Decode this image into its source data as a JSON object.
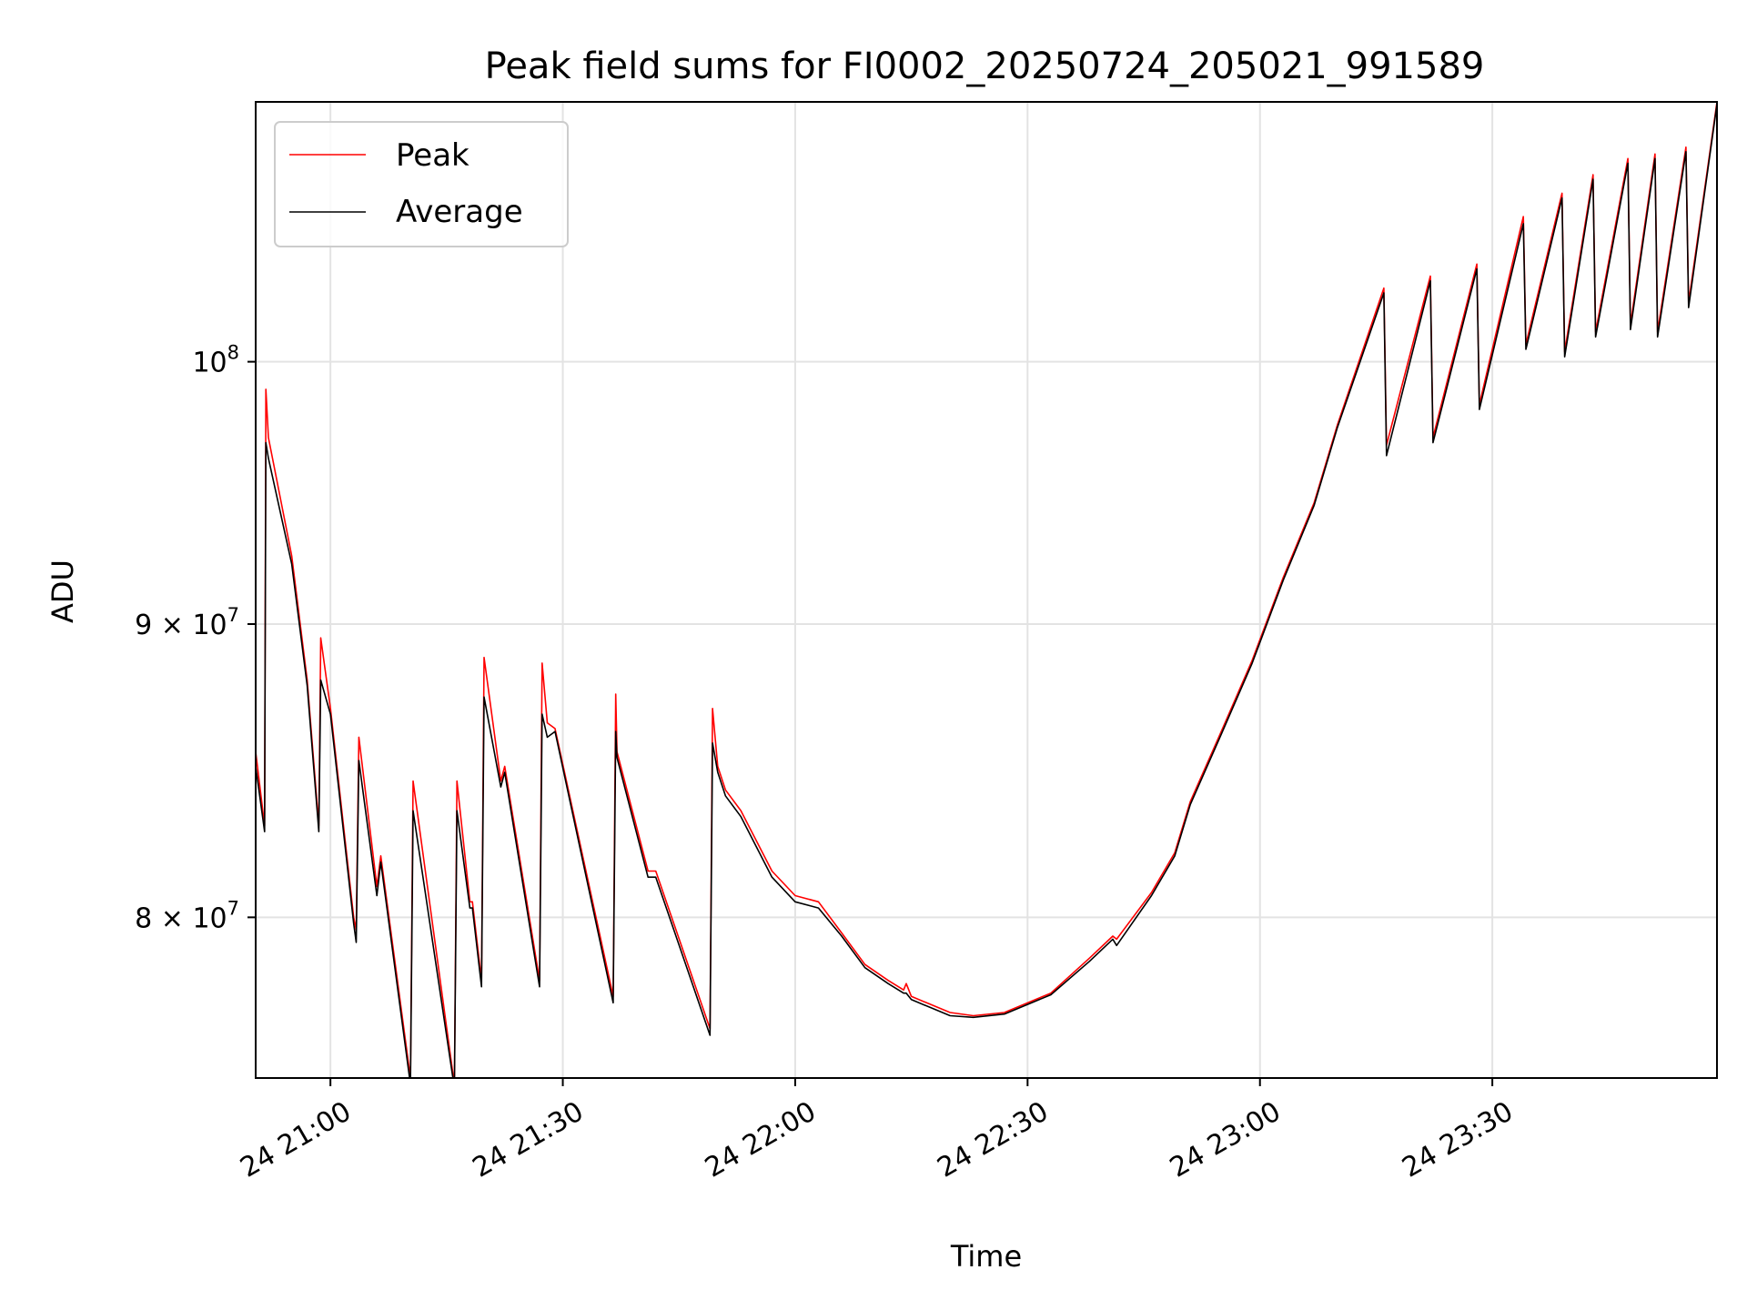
{
  "chart_data": {
    "type": "line",
    "title": "Peak field sums for FI0002_20250724_205021_991589",
    "xlabel": "Time",
    "ylabel": "ADU",
    "x_unit": "time of day (24 Jul 2025)",
    "xlim": [
      "20:50:21",
      "23:59:00"
    ],
    "ylim": [
      75000000,
      111000000
    ],
    "yscale": "log",
    "grid": true,
    "legend_position": "upper-left",
    "x_ticks": [
      {
        "value": "21:00",
        "label": "24 21:00"
      },
      {
        "value": "21:30",
        "label": "24 21:30"
      },
      {
        "value": "22:00",
        "label": "24 22:00"
      },
      {
        "value": "22:30",
        "label": "24 22:30"
      },
      {
        "value": "23:00",
        "label": "24 23:00"
      },
      {
        "value": "23:30",
        "label": "24 23:30"
      }
    ],
    "y_ticks": [
      {
        "value": 80000000,
        "base": "8",
        "exp": "7"
      },
      {
        "value": 90000000,
        "base": "9",
        "exp": "7"
      },
      {
        "value": 100000000,
        "base": "",
        "exp": "8"
      }
    ],
    "series": [
      {
        "name": "Peak",
        "color": "#ff0000",
        "points": [
          [
            "20:50:21",
            85500000
          ],
          [
            "20:51:30",
            83000000
          ],
          [
            "20:51:40",
            98900000
          ],
          [
            "20:52:00",
            97000000
          ],
          [
            "20:55:00",
            92500000
          ],
          [
            "20:57:00",
            88000000
          ],
          [
            "20:58:30",
            83000000
          ],
          [
            "20:58:45",
            89500000
          ],
          [
            "21:00:00",
            87000000
          ],
          [
            "21:03:00",
            80000000
          ],
          [
            "21:03:20",
            79600000
          ],
          [
            "21:03:40",
            86000000
          ],
          [
            "21:06:00",
            81000000
          ],
          [
            "21:06:30",
            82000000
          ],
          [
            "21:10:20",
            75000000
          ],
          [
            "21:10:40",
            84500000
          ],
          [
            "21:16:00",
            74800000
          ],
          [
            "21:16:20",
            84500000
          ],
          [
            "21:18:00",
            80500000
          ],
          [
            "21:18:20",
            80500000
          ],
          [
            "21:19:30",
            78000000
          ],
          [
            "21:19:50",
            88800000
          ],
          [
            "21:22:00",
            84500000
          ],
          [
            "21:22:30",
            85000000
          ],
          [
            "21:27:00",
            78000000
          ],
          [
            "21:27:20",
            88600000
          ],
          [
            "21:28:00",
            86500000
          ],
          [
            "21:29:00",
            86300000
          ],
          [
            "21:36:30",
            77500000
          ],
          [
            "21:36:50",
            87500000
          ],
          [
            "21:37:00",
            85500000
          ],
          [
            "21:41:00",
            81500000
          ],
          [
            "21:42:00",
            81500000
          ],
          [
            "21:49:00",
            76500000
          ],
          [
            "21:49:20",
            87000000
          ],
          [
            "21:50:00",
            85000000
          ],
          [
            "21:51:00",
            84200000
          ],
          [
            "21:53:00",
            83500000
          ],
          [
            "21:57:00",
            81500000
          ],
          [
            "22:00:00",
            80700000
          ],
          [
            "22:03:00",
            80500000
          ],
          [
            "22:06:00",
            79500000
          ],
          [
            "22:09:00",
            78500000
          ],
          [
            "22:12:00",
            78000000
          ],
          [
            "22:14:00",
            77700000
          ],
          [
            "22:14:20",
            77900000
          ],
          [
            "22:15:00",
            77500000
          ],
          [
            "22:20:00",
            77000000
          ],
          [
            "22:23:00",
            76900000
          ],
          [
            "22:27:00",
            77000000
          ],
          [
            "22:33:00",
            77600000
          ],
          [
            "22:38:00",
            78700000
          ],
          [
            "22:41:00",
            79400000
          ],
          [
            "22:41:30",
            79300000
          ],
          [
            "22:46:00",
            80800000
          ],
          [
            "22:49:00",
            82100000
          ],
          [
            "22:51:00",
            83800000
          ],
          [
            "22:55:00",
            86200000
          ],
          [
            "22:59:00",
            88700000
          ],
          [
            "23:03:00",
            91700000
          ],
          [
            "23:07:00",
            94500000
          ],
          [
            "23:10:00",
            97500000
          ],
          [
            "23:16:00",
            103000000
          ],
          [
            "23:16:20",
            96700000
          ],
          [
            "23:22:00",
            103500000
          ],
          [
            "23:22:20",
            97000000
          ],
          [
            "23:28:00",
            104000000
          ],
          [
            "23:28:20",
            98300000
          ],
          [
            "23:34:00",
            106000000
          ],
          [
            "23:34:20",
            100700000
          ],
          [
            "23:39:00",
            107000000
          ],
          [
            "23:39:20",
            100400000
          ],
          [
            "23:43:00",
            107800000
          ],
          [
            "23:43:20",
            101200000
          ],
          [
            "23:47:30",
            108500000
          ],
          [
            "23:47:50",
            101500000
          ],
          [
            "23:51:00",
            108700000
          ],
          [
            "23:51:20",
            101200000
          ],
          [
            "23:55:00",
            109000000
          ],
          [
            "23:55:20",
            102400000
          ],
          [
            "23:59:00",
            111000000
          ]
        ]
      },
      {
        "name": "Average",
        "color": "#000000",
        "points": [
          [
            "20:50:21",
            85000000
          ],
          [
            "20:51:30",
            82800000
          ],
          [
            "20:51:40",
            96800000
          ],
          [
            "20:52:00",
            96200000
          ],
          [
            "20:55:00",
            92200000
          ],
          [
            "20:57:00",
            87800000
          ],
          [
            "20:58:30",
            82800000
          ],
          [
            "20:58:45",
            88000000
          ],
          [
            "21:00:00",
            86800000
          ],
          [
            "21:03:00",
            79800000
          ],
          [
            "21:03:20",
            79200000
          ],
          [
            "21:03:40",
            85200000
          ],
          [
            "21:06:00",
            80700000
          ],
          [
            "21:06:30",
            81800000
          ],
          [
            "21:10:20",
            74800000
          ],
          [
            "21:10:40",
            83500000
          ],
          [
            "21:16:00",
            74700000
          ],
          [
            "21:16:20",
            83500000
          ],
          [
            "21:18:00",
            80300000
          ],
          [
            "21:18:20",
            80300000
          ],
          [
            "21:19:30",
            77800000
          ],
          [
            "21:19:50",
            87400000
          ],
          [
            "21:22:00",
            84300000
          ],
          [
            "21:22:30",
            84800000
          ],
          [
            "21:27:00",
            77800000
          ],
          [
            "21:27:20",
            86800000
          ],
          [
            "21:28:00",
            86000000
          ],
          [
            "21:29:00",
            86200000
          ],
          [
            "21:36:30",
            77300000
          ],
          [
            "21:36:50",
            86200000
          ],
          [
            "21:37:00",
            85300000
          ],
          [
            "21:41:00",
            81300000
          ],
          [
            "21:42:00",
            81300000
          ],
          [
            "21:49:00",
            76300000
          ],
          [
            "21:49:20",
            85800000
          ],
          [
            "21:50:00",
            84800000
          ],
          [
            "21:51:00",
            84000000
          ],
          [
            "21:53:00",
            83300000
          ],
          [
            "21:57:00",
            81300000
          ],
          [
            "22:00:00",
            80500000
          ],
          [
            "22:03:00",
            80300000
          ],
          [
            "22:06:00",
            79400000
          ],
          [
            "22:09:00",
            78400000
          ],
          [
            "22:12:00",
            77900000
          ],
          [
            "22:14:00",
            77600000
          ],
          [
            "22:14:20",
            77600000
          ],
          [
            "22:15:00",
            77400000
          ],
          [
            "22:20:00",
            76900000
          ],
          [
            "22:23:00",
            76850000
          ],
          [
            "22:27:00",
            76950000
          ],
          [
            "22:33:00",
            77550000
          ],
          [
            "22:38:00",
            78600000
          ],
          [
            "22:41:00",
            79300000
          ],
          [
            "22:41:30",
            79100000
          ],
          [
            "22:46:00",
            80700000
          ],
          [
            "22:49:00",
            82000000
          ],
          [
            "22:51:00",
            83700000
          ],
          [
            "22:55:00",
            86100000
          ],
          [
            "22:59:00",
            88600000
          ],
          [
            "23:03:00",
            91600000
          ],
          [
            "23:07:00",
            94400000
          ],
          [
            "23:10:00",
            97400000
          ],
          [
            "23:16:00",
            102800000
          ],
          [
            "23:16:20",
            96300000
          ],
          [
            "23:22:00",
            103300000
          ],
          [
            "23:22:20",
            96800000
          ],
          [
            "23:28:00",
            103800000
          ],
          [
            "23:28:20",
            98100000
          ],
          [
            "23:34:00",
            105700000
          ],
          [
            "23:34:20",
            100500000
          ],
          [
            "23:39:00",
            106800000
          ],
          [
            "23:39:20",
            100200000
          ],
          [
            "23:43:00",
            107600000
          ],
          [
            "23:43:20",
            101000000
          ],
          [
            "23:47:30",
            108300000
          ],
          [
            "23:47:50",
            101300000
          ],
          [
            "23:51:00",
            108500000
          ],
          [
            "23:51:20",
            101000000
          ],
          [
            "23:55:00",
            108800000
          ],
          [
            "23:55:20",
            102200000
          ],
          [
            "23:59:00",
            110900000
          ]
        ]
      }
    ]
  }
}
